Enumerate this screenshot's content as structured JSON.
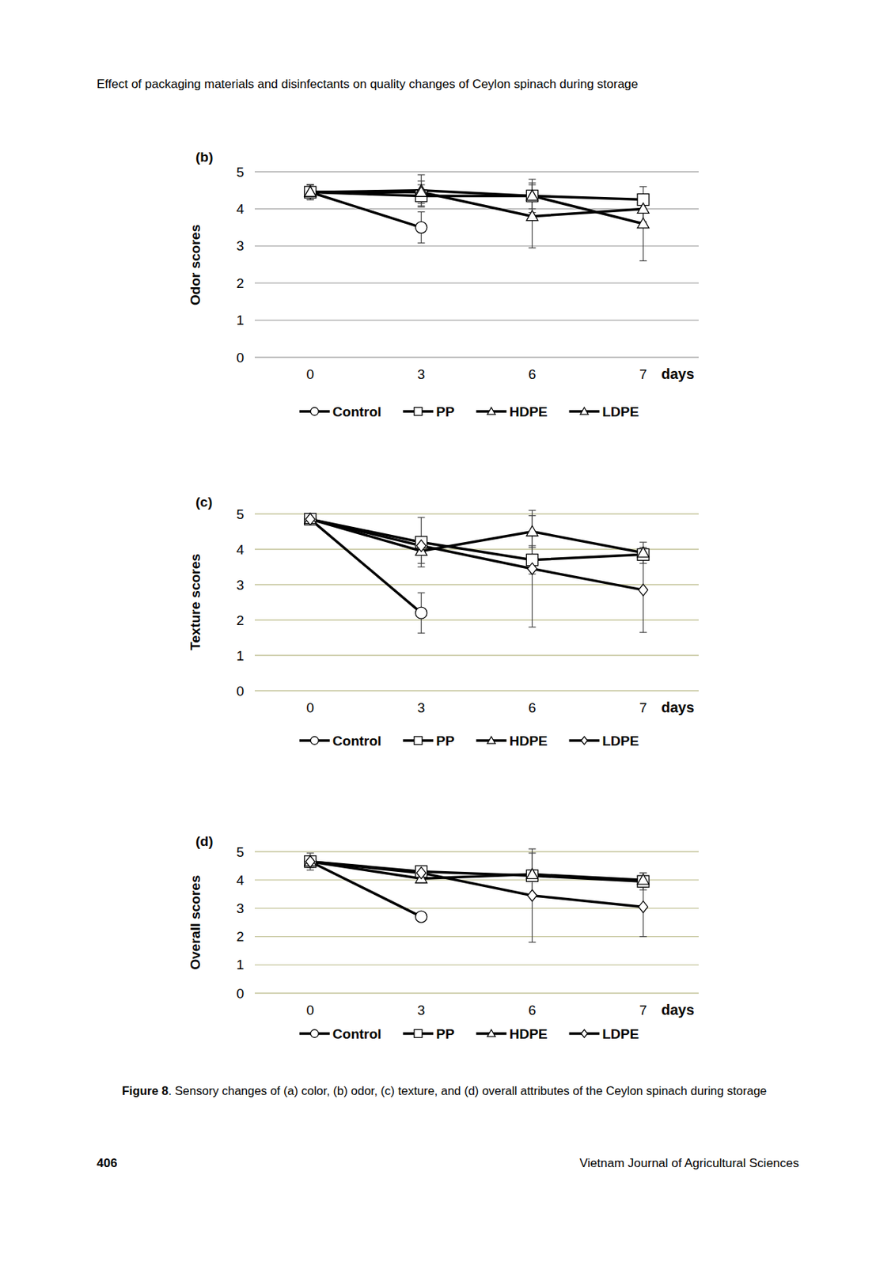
{
  "page": {
    "header": "Effect of packaging materials and disinfectants on quality changes of Ceylon spinach during storage",
    "caption_label": "Figure 8",
    "caption": ". Sensory changes of (a) color, (b) odor, (c) texture, and (d) overall attributes of the Ceylon spinach during storage",
    "page_number": "406",
    "journal": "Vietnam Journal of Agricultural Sciences"
  },
  "chart_data": [
    {
      "type": "line",
      "title": "(b)",
      "y_label": "Odor scores",
      "x_label": "days",
      "categories": [
        "0",
        "3",
        "6",
        "7"
      ],
      "ylim": [
        0,
        5
      ],
      "yticks": [
        0,
        1,
        2,
        3,
        4,
        5
      ],
      "grid": true,
      "series": [
        {
          "name": "Control",
          "color": "#000000",
          "marker": "circle",
          "values": [
            4.45,
            3.5,
            null,
            null
          ],
          "errors": [
            0.2,
            0.42,
            null,
            null
          ]
        },
        {
          "name": "PP",
          "color": "#000000",
          "marker": "square",
          "values": [
            4.45,
            4.35,
            4.35,
            4.25
          ],
          "errors": [
            0.2,
            0.3,
            0.35,
            0.15
          ]
        },
        {
          "name": "HDPE",
          "color": "#000000",
          "marker": "triangle",
          "values": [
            4.45,
            4.5,
            4.35,
            3.6
          ],
          "errors": [
            0.2,
            0.42,
            0.45,
            1.0
          ]
        },
        {
          "name": "LDPE",
          "color": "#000000",
          "marker": "triangle",
          "values": [
            4.45,
            4.45,
            3.8,
            4.0
          ],
          "errors": [
            0.2,
            0.3,
            0.85,
            0.35
          ]
        }
      ]
    },
    {
      "type": "line",
      "title": "(c)",
      "y_label": "Texture scores",
      "x_label": "days",
      "categories": [
        "0",
        "3",
        "6",
        "7"
      ],
      "ylim": [
        0,
        5
      ],
      "yticks": [
        0,
        1,
        2,
        3,
        4,
        5
      ],
      "grid": true,
      "series": [
        {
          "name": "Control",
          "color": "#000000",
          "marker": "circle",
          "values": [
            4.85,
            2.2,
            null,
            null
          ],
          "errors": [
            0.1,
            0.57,
            null,
            null
          ]
        },
        {
          "name": "PP",
          "color": "#000000",
          "marker": "square",
          "values": [
            4.85,
            4.2,
            3.7,
            3.85
          ],
          "errors": [
            0.1,
            0.7,
            0.4,
            0.1
          ]
        },
        {
          "name": "HDPE",
          "color": "#000000",
          "marker": "triangle",
          "values": [
            4.85,
            3.95,
            4.5,
            3.9
          ],
          "errors": [
            0.1,
            0.35,
            0.45,
            0.3
          ]
        },
        {
          "name": "LDPE",
          "color": "#000000",
          "marker": "diamond",
          "values": [
            4.85,
            4.1,
            3.45,
            2.85
          ],
          "errors": [
            0.1,
            0.2,
            1.65,
            1.2
          ]
        }
      ]
    },
    {
      "type": "line",
      "title": "(d)",
      "y_label": "Overall scores",
      "x_label": "days",
      "categories": [
        "0",
        "3",
        "6",
        "7"
      ],
      "ylim": [
        0,
        5
      ],
      "yticks": [
        0,
        1,
        2,
        3,
        4,
        5
      ],
      "grid": true,
      "series": [
        {
          "name": "Control",
          "color": "#000000",
          "marker": "circle",
          "values": [
            4.65,
            2.7,
            null,
            null
          ],
          "errors": [
            0.3,
            0.1,
            null,
            null
          ]
        },
        {
          "name": "PP",
          "color": "#000000",
          "marker": "square",
          "values": [
            4.65,
            4.3,
            4.15,
            3.95
          ],
          "errors": [
            0.2,
            0.15,
            0.2,
            0.3
          ]
        },
        {
          "name": "HDPE",
          "color": "#000000",
          "marker": "triangle",
          "values": [
            4.65,
            4.05,
            4.2,
            4.0
          ],
          "errors": [
            0.2,
            0.1,
            0.75,
            0.25
          ]
        },
        {
          "name": "LDPE",
          "color": "#000000",
          "marker": "diamond",
          "values": [
            4.65,
            4.25,
            3.45,
            3.05
          ],
          "errors": [
            0.1,
            0.15,
            1.65,
            1.05
          ]
        }
      ]
    }
  ]
}
